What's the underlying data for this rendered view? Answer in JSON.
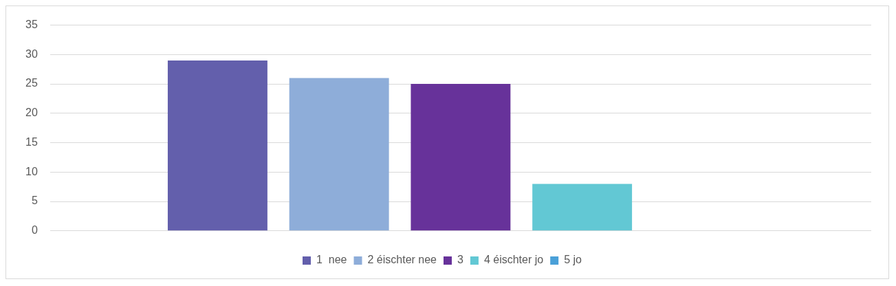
{
  "chart_data": {
    "type": "bar",
    "categories": [
      null
    ],
    "series": [
      {
        "name": "1  nee",
        "color": "#635fac",
        "values": [
          29
        ]
      },
      {
        "name": "2 éischter nee",
        "color": "#8eadd9",
        "values": [
          26
        ]
      },
      {
        "name": "3",
        "color": "#67329a",
        "values": [
          25
        ]
      },
      {
        "name": "4 éischter jo",
        "color": "#62c8d4",
        "values": [
          8
        ]
      },
      {
        "name": "5 jo",
        "color": "#4aa0d8",
        "values": [
          0
        ]
      }
    ],
    "ylim": [
      0,
      35
    ],
    "yticks": [
      0,
      5,
      10,
      15,
      20,
      25,
      30,
      35
    ],
    "grid": "y",
    "legend": "bottom"
  }
}
